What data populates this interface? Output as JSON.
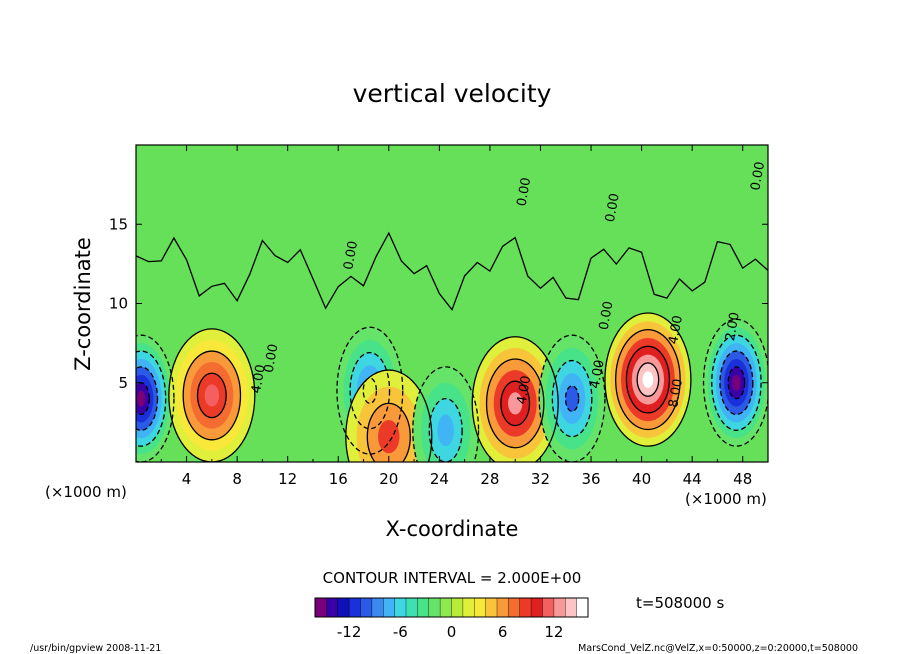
{
  "chart_data": {
    "type": "heatmap",
    "title": "vertical velocity",
    "xlabel": "X-coordinate",
    "ylabel": "Z-coordinate",
    "x_unit": "(×1000 m)",
    "z_unit": "(×1000 m)",
    "xlim": [
      0,
      50
    ],
    "ylim": [
      0,
      20
    ],
    "x_ticks": [
      "4",
      "8",
      "12",
      "16",
      "20",
      "24",
      "28",
      "32",
      "36",
      "40",
      "44",
      "48"
    ],
    "y_ticks": [
      "5",
      "10",
      "15"
    ],
    "contour_interval_text": "CONTOUR INTERVAL = 2.000E+00",
    "contour_labels": [
      {
        "text": "4.00",
        "x": 10,
        "z": 5.2
      },
      {
        "text": "0.00",
        "x": 11,
        "z": 6.5
      },
      {
        "text": "4.00",
        "x": 31,
        "z": 4.5
      },
      {
        "text": "4.00",
        "x": 36.8,
        "z": 5.5
      },
      {
        "text": "0.00",
        "x": 37.5,
        "z": 9.2
      },
      {
        "text": "4.00",
        "x": 43,
        "z": 8.3
      },
      {
        "text": "8.00",
        "x": 43,
        "z": 4.3
      },
      {
        "text": "0.00",
        "x": 38,
        "z": 16
      },
      {
        "text": "0.00",
        "x": 31,
        "z": 17
      },
      {
        "text": "0.00",
        "x": 49.5,
        "z": 18
      },
      {
        "text": "0.00",
        "x": 17.3,
        "z": 13
      },
      {
        "text": "2.00",
        "x": 47.5,
        "z": 8.5
      }
    ],
    "features": [
      {
        "sign": "down",
        "x": 0.4,
        "z": 4.0,
        "peak": -16
      },
      {
        "sign": "up",
        "x": 6.0,
        "z": 4.2,
        "peak": 11
      },
      {
        "sign": "down",
        "x": 18.5,
        "z": 4.5,
        "peak": -9
      },
      {
        "sign": "up",
        "x": 20.0,
        "z": 1.6,
        "peak": 8
      },
      {
        "sign": "down",
        "x": 24.5,
        "z": 2.0,
        "peak": -8
      },
      {
        "sign": "up",
        "x": 30.0,
        "z": 3.7,
        "peak": 12
      },
      {
        "sign": "down",
        "x": 34.5,
        "z": 4.0,
        "peak": -10
      },
      {
        "sign": "up",
        "x": 40.5,
        "z": 5.2,
        "peak": 16
      },
      {
        "sign": "down",
        "x": 47.5,
        "z": 5.0,
        "peak": -16
      }
    ],
    "colorbar": {
      "min": -16,
      "max": 16,
      "tick_labels": [
        "-12",
        "-6",
        "0",
        "6",
        "12"
      ],
      "tick_values": [
        -12,
        -6,
        0,
        6,
        12
      ],
      "colors": [
        "#7a007a",
        "#3a00a8",
        "#1010b8",
        "#1a30d8",
        "#2a5ae6",
        "#3a8af0",
        "#40b4f4",
        "#3ed6e0",
        "#3ee0b0",
        "#48e288",
        "#66e46a",
        "#8ee850",
        "#b8ec3a",
        "#e0f03a",
        "#f8e83a",
        "#f8c43a",
        "#f89a3a",
        "#f46c30",
        "#ec3a28",
        "#e02020",
        "#f46060",
        "#f89898",
        "#fcc4c4",
        "#ffffff"
      ]
    },
    "time_label": "t=508000 s",
    "grid": false
  },
  "footer": {
    "left": "/usr/bin/gpview   2008-11-21",
    "right": "MarsCond_VelZ.nc@VelZ,x=0:50000,z=0:20000,t=508000"
  }
}
